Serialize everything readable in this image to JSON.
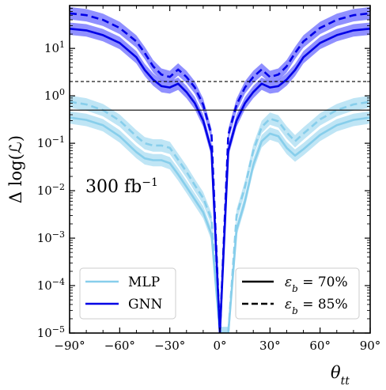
{
  "chart_data": {
    "type": "line",
    "xlabel": "θ",
    "xlabel_sub": "tt",
    "ylabel": "Δ log(ℒ)",
    "xlim": [
      -90,
      90
    ],
    "ylim": [
      1e-05,
      80
    ],
    "yscale": "log",
    "xticks": [
      -90,
      -60,
      -30,
      0,
      30,
      60,
      90
    ],
    "xtick_labels": [
      "−90°",
      "−60°",
      "−30°",
      "0°",
      "30°",
      "60°",
      "90°"
    ],
    "yticks": [
      1e-05,
      0.0001,
      0.001,
      0.01,
      0.1,
      1,
      10
    ],
    "ytick_labels": [
      {
        "base": "10",
        "exp": "−5"
      },
      {
        "base": "10",
        "exp": "−4"
      },
      {
        "base": "10",
        "exp": "−3"
      },
      {
        "base": "10",
        "exp": "−2"
      },
      {
        "base": "10",
        "exp": "−1"
      },
      {
        "base": "10",
        "exp": "0"
      },
      {
        "base": "10",
        "exp": "1"
      }
    ],
    "grid": false,
    "annotation": {
      "text": "300 fb",
      "exp": "−1"
    },
    "hlines": [
      {
        "y": 0.5,
        "style": "solid"
      },
      {
        "y": 2.0,
        "style": "dashed"
      }
    ],
    "x": [
      -90,
      -80,
      -70,
      -60,
      -50,
      -45,
      -40,
      -35,
      -30,
      -25,
      -20,
      -15,
      -10,
      -5,
      0,
      5,
      10,
      15,
      20,
      25,
      30,
      35,
      40,
      45,
      50,
      60,
      70,
      80,
      90
    ],
    "series": [
      {
        "name": "MLP",
        "eff": "70%",
        "style": "solid",
        "color": "#87ceeb",
        "values": [
          0.35,
          0.31,
          0.24,
          0.14,
          0.065,
          0.048,
          0.044,
          0.044,
          0.038,
          0.022,
          0.012,
          0.0065,
          0.0035,
          0.0012,
          1e-05,
          1e-05,
          0.0015,
          0.006,
          0.035,
          0.11,
          0.16,
          0.14,
          0.08,
          0.055,
          0.075,
          0.15,
          0.24,
          0.31,
          0.35
        ]
      },
      {
        "name": "MLP",
        "eff": "85%",
        "style": "dashed",
        "color": "#87ceeb",
        "values": [
          0.75,
          0.66,
          0.5,
          0.3,
          0.14,
          0.1,
          0.09,
          0.09,
          0.08,
          0.045,
          0.025,
          0.013,
          0.007,
          0.0025,
          1e-05,
          1e-05,
          0.003,
          0.012,
          0.07,
          0.22,
          0.33,
          0.29,
          0.17,
          0.11,
          0.16,
          0.32,
          0.5,
          0.66,
          0.75
        ]
      },
      {
        "name": "GNN",
        "eff": "70%",
        "style": "solid",
        "color": "#0000e6",
        "values": [
          26,
          24,
          19,
          13,
          6.5,
          3.5,
          2.2,
          1.6,
          1.5,
          1.8,
          1.2,
          0.7,
          0.3,
          0.07,
          1e-05,
          0.07,
          0.3,
          0.7,
          1.2,
          1.8,
          1.5,
          1.6,
          2.2,
          3.5,
          6.5,
          13,
          19,
          24,
          26
        ]
      },
      {
        "name": "GNN",
        "eff": "85%",
        "style": "dashed",
        "color": "#0000e6",
        "values": [
          55,
          50,
          40,
          27,
          14,
          8,
          4.2,
          2.8,
          2.5,
          3.6,
          2.5,
          1.5,
          0.65,
          0.15,
          1e-05,
          0.15,
          0.65,
          1.5,
          2.5,
          3.6,
          2.5,
          2.8,
          4.2,
          8,
          14,
          27,
          40,
          50,
          55
        ]
      }
    ],
    "legend_models": [
      {
        "label": "MLP",
        "color": "#87ceeb"
      },
      {
        "label": "GNN",
        "color": "#0000e6"
      }
    ],
    "legend_models_loc": "lower-left",
    "legend_eff": [
      {
        "label_prefix": "ε",
        "label_sub": "b",
        "label_suffix": " = 70%",
        "style": "solid"
      },
      {
        "label_prefix": "ε",
        "label_sub": "b",
        "label_suffix": " = 85%",
        "style": "dashed"
      }
    ],
    "legend_eff_loc": "lower-right"
  }
}
